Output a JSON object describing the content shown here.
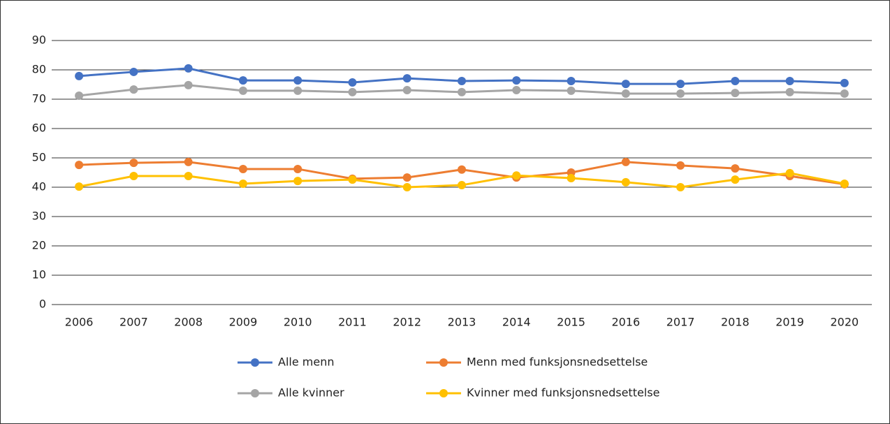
{
  "chart_data": {
    "type": "line",
    "categories": [
      "2006",
      "2007",
      "2008",
      "2009",
      "2010",
      "2011",
      "2012",
      "2013",
      "2014",
      "2015",
      "2016",
      "2017",
      "2018",
      "2019",
      "2020"
    ],
    "series": [
      {
        "name": "Alle menn",
        "color": "#4472c4",
        "values": [
          77.9,
          79.3,
          80.5,
          76.4,
          76.4,
          75.7,
          77.1,
          76.2,
          76.4,
          76.2,
          75.2,
          75.2,
          76.2,
          76.2,
          75.5
        ]
      },
      {
        "name": "Menn med funksjonsnedsettelse",
        "color": "#ed7d31",
        "values": [
          47.6,
          48.3,
          48.6,
          46.2,
          46.2,
          42.9,
          43.3,
          46.0,
          43.3,
          45.0,
          48.6,
          47.4,
          46.4,
          43.8,
          41.0
        ]
      },
      {
        "name": "Alle kvinner",
        "color": "#a5a5a5",
        "values": [
          71.2,
          73.3,
          74.8,
          72.9,
          72.9,
          72.4,
          73.1,
          72.4,
          73.1,
          72.9,
          71.9,
          71.9,
          72.1,
          72.4,
          71.9
        ]
      },
      {
        "name": "Kvinner med funksjonsnedsettelse",
        "color": "#ffc000",
        "values": [
          40.2,
          43.8,
          43.8,
          41.2,
          42.1,
          42.6,
          40.0,
          40.7,
          44.0,
          43.1,
          41.7,
          40.0,
          42.6,
          44.8,
          41.2
        ]
      }
    ],
    "ylim": [
      0,
      90
    ],
    "yticks": [
      0,
      10,
      20,
      30,
      40,
      50,
      60,
      70,
      80,
      90
    ],
    "grid": true,
    "legend": "bottom"
  }
}
